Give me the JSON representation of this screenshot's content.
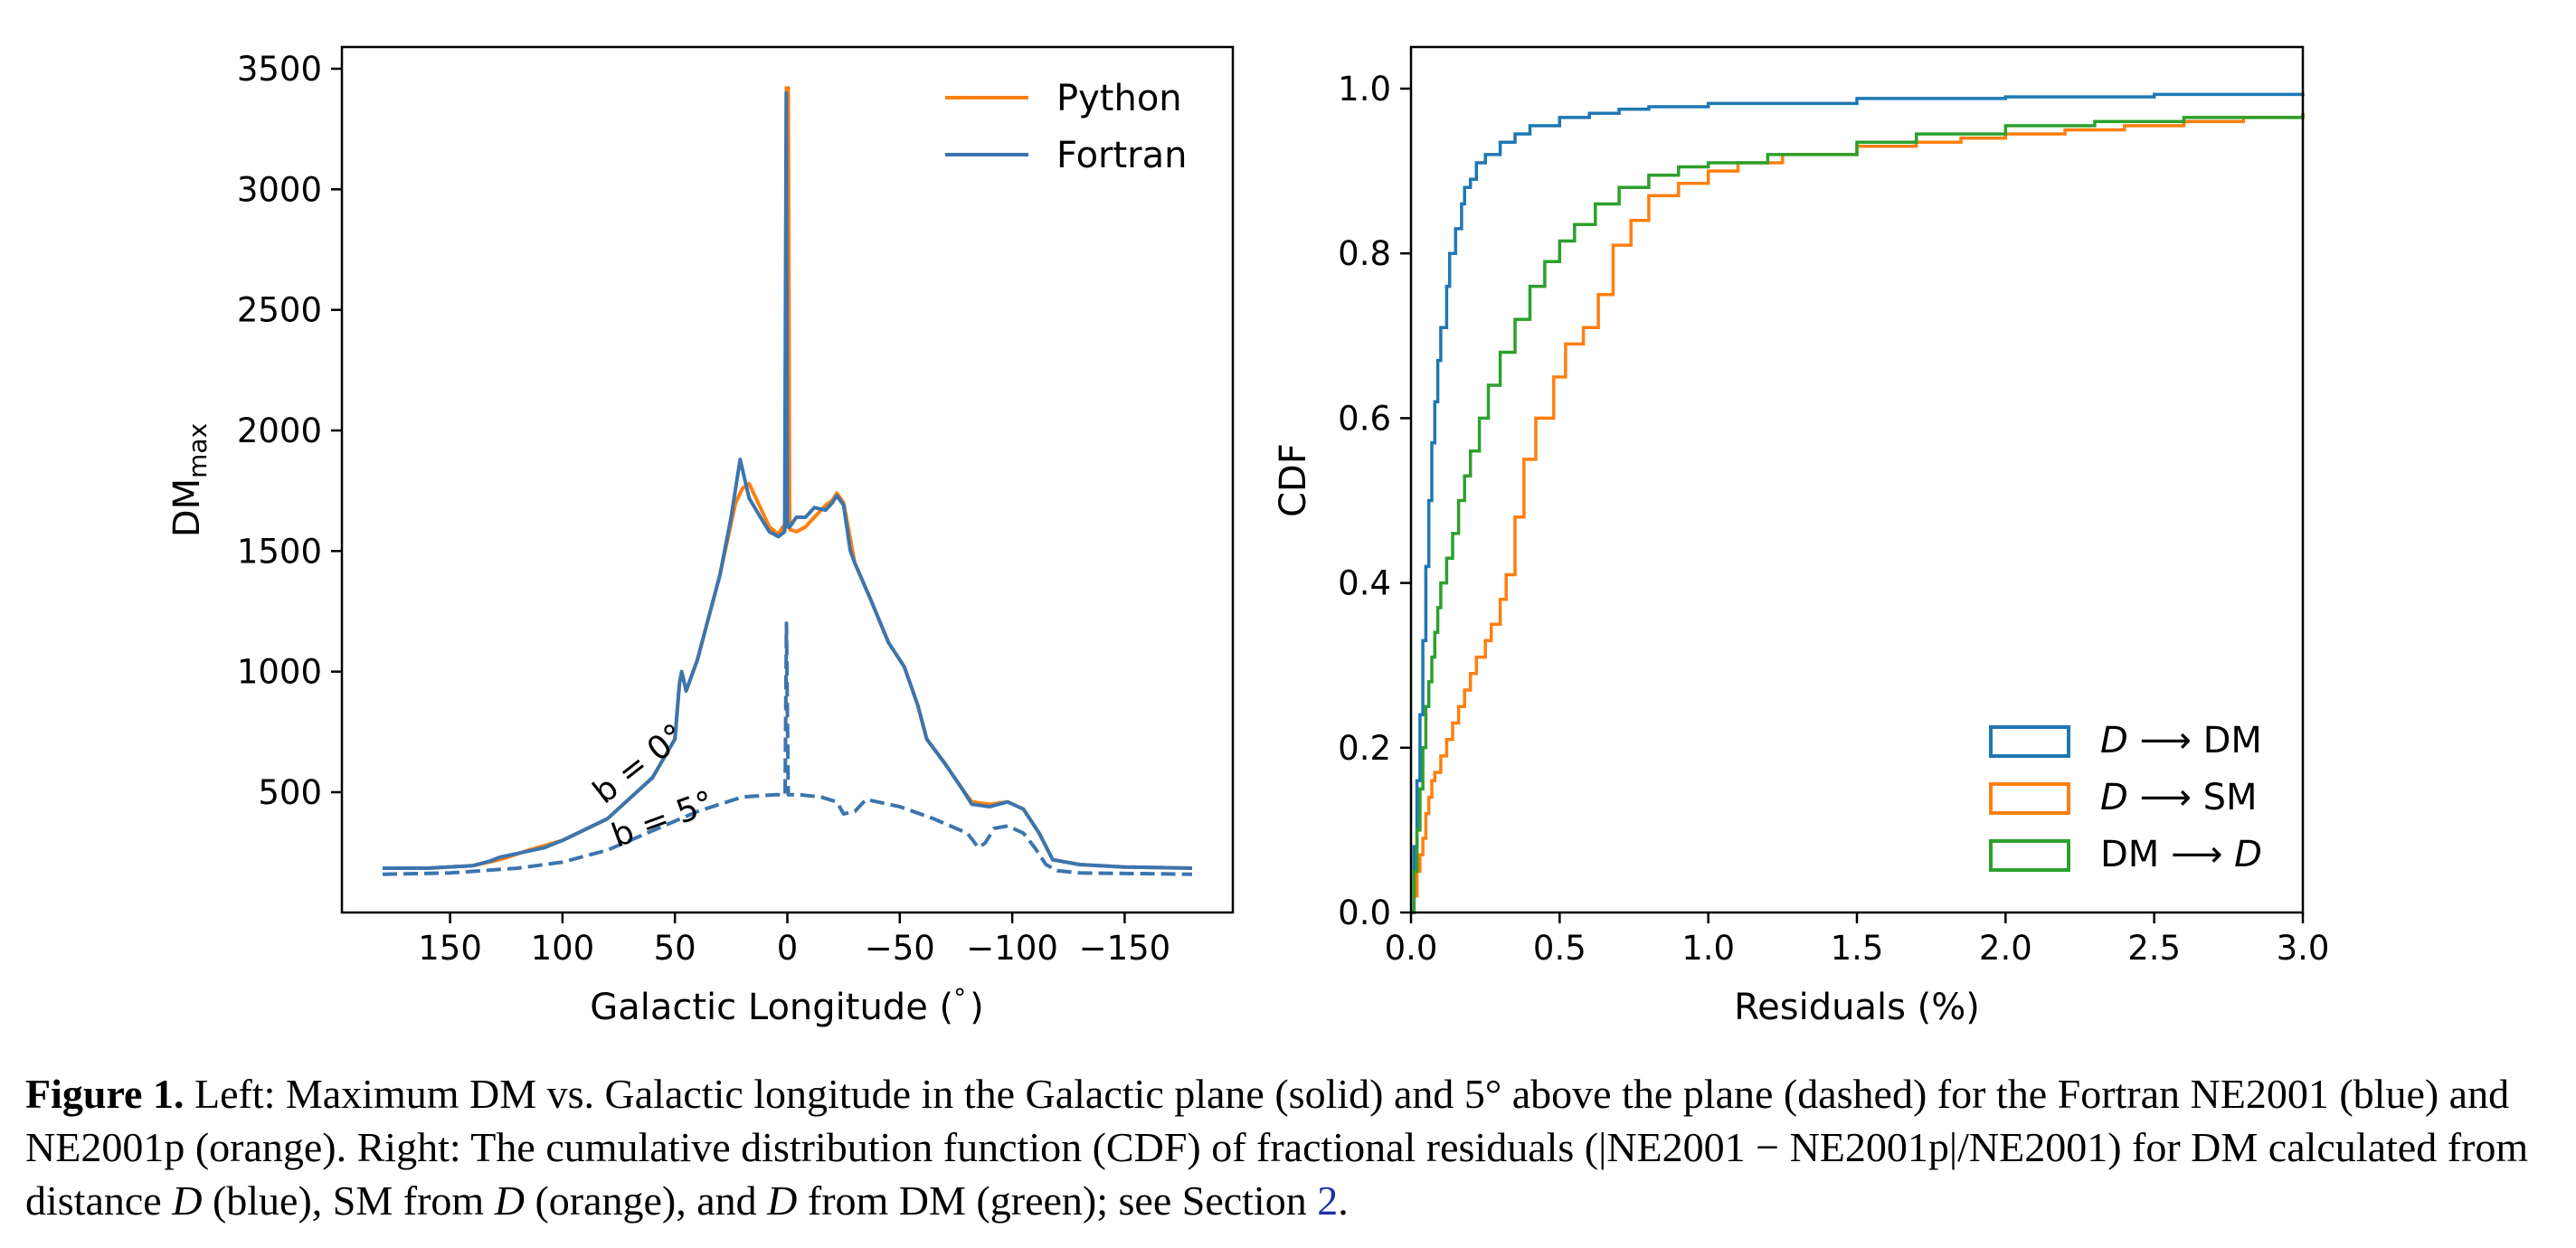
{
  "colors": {
    "python": "#ff7f0e",
    "fortran": "#3b75af",
    "dm": "#1f77b4",
    "sm": "#ff7f0e",
    "dmd": "#2ca02c"
  },
  "chart_data": [
    {
      "type": "line",
      "xlabel": "Galactic Longitude (",
      "xlabel_deg": "°",
      "xlabel_close": ")",
      "ylabel_main": "DM",
      "ylabel_sub": "max",
      "xlim": [
        180,
        -180
      ],
      "ylim": [
        0,
        3600
      ],
      "x_inverted": true,
      "xticks": [
        150,
        100,
        50,
        0,
        -50,
        -100,
        -150
      ],
      "xtick_labels": [
        "150",
        "100",
        "50",
        "0",
        "−50",
        "−100",
        "−150"
      ],
      "yticks": [
        500,
        1000,
        1500,
        2000,
        2500,
        3000,
        3500
      ],
      "ytick_labels": [
        "500",
        "1000",
        "1500",
        "2000",
        "2500",
        "3000",
        "3500"
      ],
      "legend": {
        "position": "top-right",
        "entries": [
          "Python",
          "Fortran"
        ]
      },
      "annotations": [
        "b = 0°",
        "b = 5°"
      ],
      "series": [
        {
          "name": "Python",
          "linestyle": "solid",
          "latitude": 0,
          "points": [
            [
              180,
              185
            ],
            [
              160,
              185
            ],
            [
              140,
              195
            ],
            [
              128,
              220
            ],
            [
              115,
              260
            ],
            [
              100,
              300
            ],
            [
              80,
              390
            ],
            [
              60,
              560
            ],
            [
              50,
              720
            ],
            [
              48,
              950
            ],
            [
              47,
              1000
            ],
            [
              45,
              920
            ],
            [
              40,
              1050
            ],
            [
              30,
              1400
            ],
            [
              23,
              1700
            ],
            [
              20,
              1760
            ],
            [
              17,
              1780
            ],
            [
              12,
              1680
            ],
            [
              8,
              1600
            ],
            [
              4,
              1570
            ],
            [
              2,
              1600
            ],
            [
              1,
              1610
            ],
            [
              0.4,
              3420
            ],
            [
              -0.4,
              3420
            ],
            [
              -1,
              1590
            ],
            [
              -4,
              1580
            ],
            [
              -8,
              1600
            ],
            [
              -12,
              1640
            ],
            [
              -17,
              1690
            ],
            [
              -20,
              1710
            ],
            [
              -22,
              1740
            ],
            [
              -25,
              1700
            ],
            [
              -30,
              1450
            ],
            [
              -37,
              1300
            ],
            [
              -45,
              1120
            ],
            [
              -52,
              1020
            ],
            [
              -58,
              860
            ],
            [
              -60,
              790
            ],
            [
              -62,
              720
            ],
            [
              -70,
              620
            ],
            [
              -78,
              510
            ],
            [
              -82,
              460
            ],
            [
              -90,
              450
            ],
            [
              -98,
              460
            ],
            [
              -105,
              430
            ],
            [
              -112,
              330
            ],
            [
              -118,
              220
            ],
            [
              -130,
              200
            ],
            [
              -150,
              190
            ],
            [
              -180,
              185
            ]
          ]
        },
        {
          "name": "Fortran",
          "linestyle": "solid",
          "latitude": 0,
          "points": [
            [
              180,
              185
            ],
            [
              160,
              185
            ],
            [
              140,
              195
            ],
            [
              132,
              215
            ],
            [
              128,
              230
            ],
            [
              118,
              250
            ],
            [
              108,
              270
            ],
            [
              100,
              300
            ],
            [
              80,
              390
            ],
            [
              60,
              560
            ],
            [
              50,
              720
            ],
            [
              48,
              950
            ],
            [
              47,
              1000
            ],
            [
              45,
              920
            ],
            [
              40,
              1050
            ],
            [
              30,
              1400
            ],
            [
              25,
              1640
            ],
            [
              21,
              1880
            ],
            [
              17,
              1720
            ],
            [
              12,
              1640
            ],
            [
              8,
              1580
            ],
            [
              4,
              1560
            ],
            [
              1.2,
              1580
            ],
            [
              0.5,
              3400
            ],
            [
              0.0,
              1600
            ],
            [
              -1,
              1600
            ],
            [
              -4,
              1640
            ],
            [
              -8,
              1640
            ],
            [
              -12,
              1680
            ],
            [
              -17,
              1670
            ],
            [
              -20,
              1700
            ],
            [
              -22,
              1730
            ],
            [
              -25,
              1690
            ],
            [
              -28,
              1500
            ],
            [
              -30,
              1450
            ],
            [
              -37,
              1300
            ],
            [
              -45,
              1120
            ],
            [
              -52,
              1020
            ],
            [
              -58,
              860
            ],
            [
              -60,
              790
            ],
            [
              -62,
              720
            ],
            [
              -70,
              620
            ],
            [
              -78,
              510
            ],
            [
              -82,
              450
            ],
            [
              -90,
              440
            ],
            [
              -98,
              460
            ],
            [
              -105,
              430
            ],
            [
              -112,
              330
            ],
            [
              -118,
              220
            ],
            [
              -130,
              200
            ],
            [
              -150,
              190
            ],
            [
              -180,
              185
            ]
          ]
        },
        {
          "name": "Fortran",
          "linestyle": "dashed",
          "latitude": 5,
          "points": [
            [
              180,
              160
            ],
            [
              150,
              165
            ],
            [
              120,
              185
            ],
            [
              100,
              210
            ],
            [
              80,
              260
            ],
            [
              60,
              340
            ],
            [
              40,
              420
            ],
            [
              20,
              480
            ],
            [
              5,
              490
            ],
            [
              1,
              490
            ],
            [
              0.4,
              1200
            ],
            [
              -0.4,
              490
            ],
            [
              -5,
              490
            ],
            [
              -15,
              480
            ],
            [
              -22,
              460
            ],
            [
              -25,
              410
            ],
            [
              -30,
              420
            ],
            [
              -35,
              470
            ],
            [
              -50,
              440
            ],
            [
              -65,
              390
            ],
            [
              -80,
              330
            ],
            [
              -85,
              270
            ],
            [
              -88,
              290
            ],
            [
              -92,
              350
            ],
            [
              -98,
              360
            ],
            [
              -105,
              330
            ],
            [
              -110,
              270
            ],
            [
              -115,
              200
            ],
            [
              -120,
              175
            ],
            [
              -130,
              165
            ],
            [
              -180,
              160
            ]
          ]
        }
      ]
    },
    {
      "type": "step",
      "xlabel": "Residuals (%)",
      "ylabel": "CDF",
      "xlim": [
        0,
        3.0
      ],
      "ylim": [
        0,
        1.05
      ],
      "xticks": [
        0.0,
        0.5,
        1.0,
        1.5,
        2.0,
        2.5,
        3.0
      ],
      "xtick_labels": [
        "0.0",
        "0.5",
        "1.0",
        "1.5",
        "2.0",
        "2.5",
        "3.0"
      ],
      "yticks": [
        0.0,
        0.2,
        0.4,
        0.6,
        0.8,
        1.0
      ],
      "ytick_labels": [
        "0.0",
        "0.2",
        "0.4",
        "0.6",
        "0.8",
        "1.0"
      ],
      "legend": {
        "position": "lower-right"
      },
      "series": [
        {
          "name": "D ⟶ DM",
          "name_parts": [
            "D",
            " ⟶ DM"
          ],
          "name_italic": [
            true,
            false
          ],
          "points": [
            [
              0,
              0
            ],
            [
              0.01,
              0.08
            ],
            [
              0.02,
              0.16
            ],
            [
              0.03,
              0.24
            ],
            [
              0.04,
              0.33
            ],
            [
              0.05,
              0.42
            ],
            [
              0.06,
              0.5
            ],
            [
              0.07,
              0.57
            ],
            [
              0.08,
              0.62
            ],
            [
              0.09,
              0.67
            ],
            [
              0.1,
              0.71
            ],
            [
              0.12,
              0.76
            ],
            [
              0.13,
              0.8
            ],
            [
              0.15,
              0.83
            ],
            [
              0.17,
              0.86
            ],
            [
              0.18,
              0.88
            ],
            [
              0.2,
              0.89
            ],
            [
              0.22,
              0.91
            ],
            [
              0.25,
              0.92
            ],
            [
              0.3,
              0.935
            ],
            [
              0.35,
              0.945
            ],
            [
              0.4,
              0.955
            ],
            [
              0.5,
              0.965
            ],
            [
              0.6,
              0.97
            ],
            [
              0.7,
              0.975
            ],
            [
              0.8,
              0.978
            ],
            [
              1.0,
              0.982
            ],
            [
              1.5,
              0.988
            ],
            [
              2.0,
              0.99
            ],
            [
              2.5,
              0.993
            ],
            [
              3.0,
              0.995
            ]
          ]
        },
        {
          "name": "D ⟶ SM",
          "name_parts": [
            "D",
            " ⟶ SM"
          ],
          "name_italic": [
            true,
            false
          ],
          "points": [
            [
              0,
              0
            ],
            [
              0.01,
              0.02
            ],
            [
              0.02,
              0.05
            ],
            [
              0.03,
              0.07
            ],
            [
              0.04,
              0.09
            ],
            [
              0.05,
              0.12
            ],
            [
              0.06,
              0.14
            ],
            [
              0.07,
              0.16
            ],
            [
              0.08,
              0.17
            ],
            [
              0.1,
              0.19
            ],
            [
              0.12,
              0.21
            ],
            [
              0.14,
              0.23
            ],
            [
              0.16,
              0.25
            ],
            [
              0.18,
              0.27
            ],
            [
              0.2,
              0.29
            ],
            [
              0.22,
              0.31
            ],
            [
              0.25,
              0.33
            ],
            [
              0.27,
              0.35
            ],
            [
              0.3,
              0.38
            ],
            [
              0.32,
              0.41
            ],
            [
              0.35,
              0.48
            ],
            [
              0.38,
              0.55
            ],
            [
              0.42,
              0.6
            ],
            [
              0.48,
              0.65
            ],
            [
              0.52,
              0.69
            ],
            [
              0.58,
              0.71
            ],
            [
              0.63,
              0.75
            ],
            [
              0.68,
              0.81
            ],
            [
              0.74,
              0.84
            ],
            [
              0.8,
              0.87
            ],
            [
              0.9,
              0.885
            ],
            [
              1.0,
              0.9
            ],
            [
              1.1,
              0.91
            ],
            [
              1.25,
              0.92
            ],
            [
              1.5,
              0.93
            ],
            [
              1.7,
              0.935
            ],
            [
              1.85,
              0.94
            ],
            [
              2.0,
              0.945
            ],
            [
              2.2,
              0.95
            ],
            [
              2.4,
              0.955
            ],
            [
              2.6,
              0.96
            ],
            [
              2.8,
              0.965
            ],
            [
              3.0,
              0.97
            ]
          ]
        },
        {
          "name": "DM ⟶ D",
          "name_parts": [
            "DM ⟶ ",
            "D"
          ],
          "name_italic": [
            false,
            true
          ],
          "points": [
            [
              0,
              0
            ],
            [
              0.01,
              0.05
            ],
            [
              0.02,
              0.1
            ],
            [
              0.03,
              0.15
            ],
            [
              0.04,
              0.2
            ],
            [
              0.05,
              0.25
            ],
            [
              0.06,
              0.28
            ],
            [
              0.07,
              0.31
            ],
            [
              0.08,
              0.34
            ],
            [
              0.09,
              0.37
            ],
            [
              0.1,
              0.4
            ],
            [
              0.12,
              0.43
            ],
            [
              0.14,
              0.46
            ],
            [
              0.16,
              0.5
            ],
            [
              0.18,
              0.53
            ],
            [
              0.2,
              0.56
            ],
            [
              0.23,
              0.6
            ],
            [
              0.26,
              0.64
            ],
            [
              0.3,
              0.68
            ],
            [
              0.35,
              0.72
            ],
            [
              0.4,
              0.76
            ],
            [
              0.45,
              0.79
            ],
            [
              0.5,
              0.815
            ],
            [
              0.55,
              0.835
            ],
            [
              0.62,
              0.86
            ],
            [
              0.7,
              0.88
            ],
            [
              0.8,
              0.895
            ],
            [
              0.9,
              0.905
            ],
            [
              1.0,
              0.91
            ],
            [
              1.2,
              0.92
            ],
            [
              1.5,
              0.935
            ],
            [
              1.7,
              0.945
            ],
            [
              2.0,
              0.955
            ],
            [
              2.3,
              0.96
            ],
            [
              2.6,
              0.965
            ],
            [
              3.0,
              0.97
            ]
          ]
        }
      ]
    }
  ],
  "caption": {
    "label": "Figure 1.",
    "seg1": " Left: Maximum DM vs. Galactic longitude in the Galactic plane (solid) and 5° above the plane (dashed) for the Fortran NE2001 (blue) and NE2001p (orange). Right: The cumulative distribution function (CDF) of fractional residuals (|NE2001 − NE2001p|/NE2001) for DM calculated from distance ",
    "var_d1": "D",
    "seg2": " (blue), SM from ",
    "var_d2": "D",
    "seg3": " (orange), and ",
    "var_d3": "D",
    "seg4": " from DM (green); see Section ",
    "ref": "2",
    "seg5": "."
  }
}
